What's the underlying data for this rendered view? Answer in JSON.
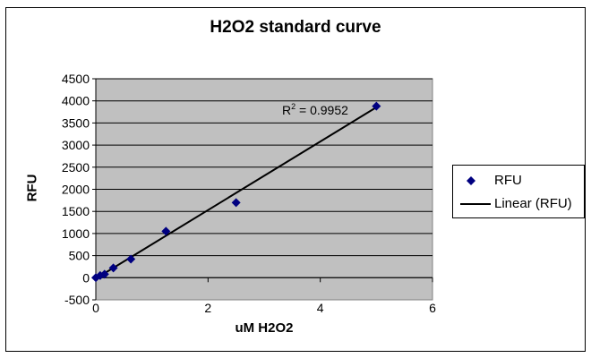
{
  "chart_data": {
    "type": "scatter",
    "title": "H2O2 standard curve",
    "xlabel": "uM H2O2",
    "ylabel": "RFU",
    "xlim": [
      0,
      6
    ],
    "ylim": [
      -500,
      4500
    ],
    "xticks": [
      0,
      2,
      4,
      6
    ],
    "yticks": [
      -500,
      0,
      500,
      1000,
      1500,
      2000,
      2500,
      3000,
      3500,
      4000,
      4500
    ],
    "grid": "horizontal",
    "legend_position": "right",
    "series": [
      {
        "name": "RFU",
        "marker": "diamond",
        "color": "#000080",
        "x": [
          0,
          0.078,
          0.156,
          0.3125,
          0.625,
          1.25,
          2.5,
          5
        ],
        "y": [
          0,
          50,
          80,
          220,
          420,
          1050,
          1700,
          3880
        ]
      }
    ],
    "trendline": {
      "name": "Linear (RFU)",
      "type": "linear",
      "slope": 775,
      "intercept": -20,
      "x_range": [
        0,
        5
      ],
      "color": "#000000"
    },
    "annotation": {
      "text_base": "R",
      "text_sup": "2",
      "text_rest": " = 0.9952"
    },
    "plot_background": "#c0c0c0"
  }
}
